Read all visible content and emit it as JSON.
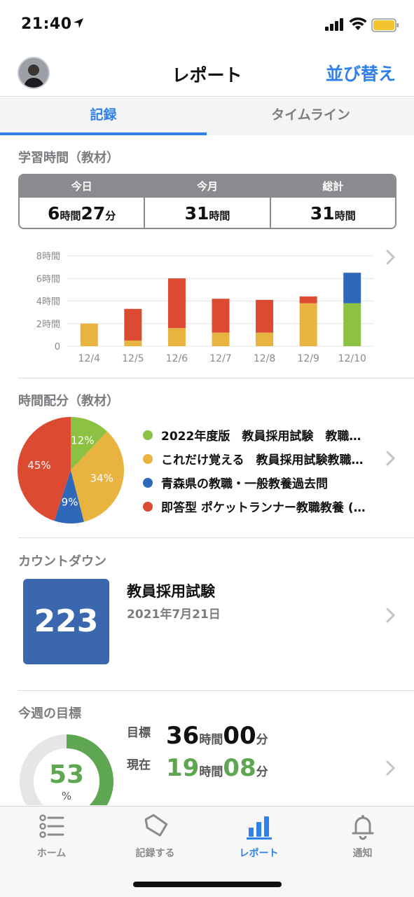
{
  "status_bar": {
    "time": "21:40"
  },
  "header": {
    "title": "レポート",
    "sort_label": "並び替え"
  },
  "tabs": [
    {
      "label": "記録",
      "active": true
    },
    {
      "label": "タイムライン",
      "active": false
    }
  ],
  "study_time": {
    "title": "学習時間（教材）",
    "stats": [
      {
        "label": "今日",
        "h": "6",
        "h_unit": "時間",
        "m": "27",
        "m_unit": "分"
      },
      {
        "label": "今月",
        "h": "31",
        "h_unit": "時間"
      },
      {
        "label": "総計",
        "h": "31",
        "h_unit": "時間"
      }
    ]
  },
  "chart_data": [
    {
      "type": "bar",
      "stacked": true,
      "categories": [
        "12/4",
        "12/5",
        "12/6",
        "12/7",
        "12/8",
        "12/9",
        "12/10"
      ],
      "series": [
        {
          "color": "#e8b33f",
          "values": [
            2.0,
            0.5,
            1.6,
            1.2,
            1.2,
            3.8,
            0
          ]
        },
        {
          "color": "#dc4a32",
          "values": [
            0,
            2.8,
            4.4,
            3.0,
            2.9,
            0.6,
            0
          ]
        },
        {
          "color": "#8dc143",
          "values": [
            0,
            0,
            0,
            0,
            0,
            0,
            3.8
          ]
        },
        {
          "color": "#2f68b8",
          "values": [
            0,
            0,
            0,
            0,
            0,
            0,
            2.7
          ]
        }
      ],
      "y_ticks": [
        "8時間",
        "6時間",
        "4時間",
        "2時間",
        "0"
      ],
      "ylim": [
        0,
        8
      ],
      "grid": true
    },
    {
      "type": "pie",
      "labels": [
        "2022年度版　教員採用試験　教職…",
        "これだけ覚える　教員採用試験教職…",
        "青森県の教職・一般教養過去問",
        "即答型 ポケットランナー教職教養 (…"
      ],
      "values": [
        12,
        34,
        9,
        45
      ],
      "value_labels": [
        "12%",
        "34%",
        "9%",
        "45%"
      ],
      "colors": [
        "#8dc143",
        "#e8b33f",
        "#2f68b8",
        "#dc4a32"
      ]
    }
  ],
  "time_allocation": {
    "title": "時間配分（教材）"
  },
  "countdown": {
    "title": "カウントダウン",
    "days": "223",
    "name": "教員採用試験",
    "date": "2021年7月21日"
  },
  "weekly_goal": {
    "title": "今週の目標",
    "percent": "53",
    "percent_unit": "%",
    "target_label": "目標",
    "target_h": "36",
    "target_h_unit": "時間",
    "target_m": "00",
    "target_m_unit": "分",
    "current_label": "現在",
    "current_h": "19",
    "current_h_unit": "時間",
    "current_m": "08",
    "current_m_unit": "分"
  },
  "tabbar": [
    {
      "label": "ホーム",
      "icon": "list-icon"
    },
    {
      "label": "記録する",
      "icon": "tag-icon"
    },
    {
      "label": "レポート",
      "icon": "bar-chart-icon",
      "active": true
    },
    {
      "label": "通知",
      "icon": "bell-icon"
    }
  ]
}
